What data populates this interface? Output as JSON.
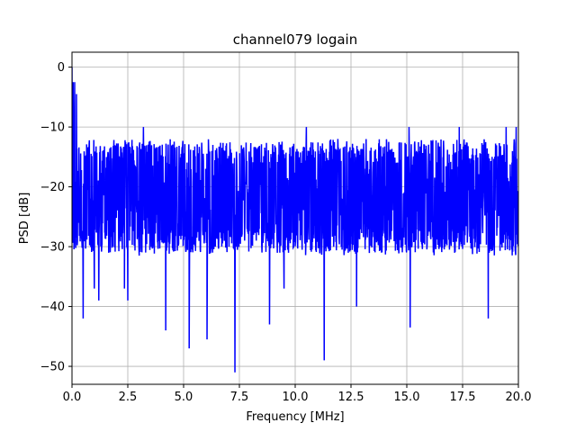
{
  "chart_data": {
    "type": "line",
    "title": "channel079 logain",
    "xlabel": "Frequency [MHz]",
    "ylabel": "PSD [dB]",
    "xlim": [
      0,
      20
    ],
    "ylim": [
      -53,
      2.5
    ],
    "grid": true,
    "series_color": "#0000ff",
    "x_ticks": [
      0,
      2.5,
      5,
      7.5,
      10,
      12.5,
      15,
      17.5,
      20
    ],
    "x_tick_labels": [
      "0.0",
      "2.5",
      "5.0",
      "7.5",
      "10.0",
      "12.5",
      "15.0",
      "17.5",
      "20.0"
    ],
    "y_ticks": [
      0,
      -10,
      -20,
      -30,
      -40,
      -50
    ],
    "y_tick_labels": [
      "0",
      "−10",
      "−20",
      "−30",
      "−40",
      "−50"
    ],
    "series": [
      {
        "x_start": 0,
        "x_end": 20,
        "baseline_min": -31,
        "baseline_max": -12,
        "values_mid": -22,
        "peaks": [
          {
            "x": 0.0,
            "y": 0
          },
          {
            "x": 0.05,
            "y": -2.5
          },
          {
            "x": 0.12,
            "y": -2.5
          },
          {
            "x": 0.2,
            "y": -4.5
          },
          {
            "x": 0.5,
            "y": -42
          },
          {
            "x": 1.0,
            "y": -37
          },
          {
            "x": 1.2,
            "y": -39
          },
          {
            "x": 2.35,
            "y": -37
          },
          {
            "x": 2.5,
            "y": -39
          },
          {
            "x": 3.2,
            "y": -10
          },
          {
            "x": 4.2,
            "y": -44
          },
          {
            "x": 5.25,
            "y": -47
          },
          {
            "x": 6.05,
            "y": -45.5
          },
          {
            "x": 7.3,
            "y": -51
          },
          {
            "x": 8.85,
            "y": -43
          },
          {
            "x": 9.5,
            "y": -37
          },
          {
            "x": 10.5,
            "y": -10
          },
          {
            "x": 11.3,
            "y": -49
          },
          {
            "x": 12.75,
            "y": -40
          },
          {
            "x": 15.15,
            "y": -43.5
          },
          {
            "x": 15.1,
            "y": -10
          },
          {
            "x": 17.35,
            "y": -10
          },
          {
            "x": 18.65,
            "y": -42
          },
          {
            "x": 19.45,
            "y": -10
          },
          {
            "x": 19.9,
            "y": -10
          }
        ]
      }
    ]
  }
}
